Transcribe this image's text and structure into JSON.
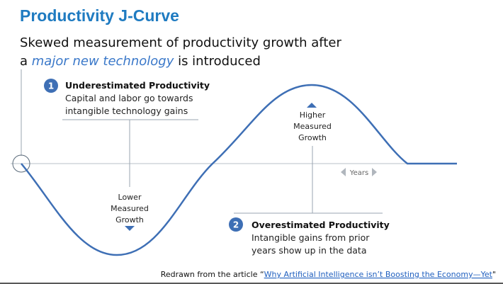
{
  "header": {
    "title": "Productivity J-Curve",
    "subtitle_line1": "Skewed measurement of productivity growth after",
    "subtitle_line2": [
      "a ",
      "major new technology",
      " is introduced"
    ]
  },
  "callouts": [
    {
      "number": "1",
      "heading": "Underestimated Productivity",
      "lines": [
        "Capital and labor go towards",
        "intangible technology gains"
      ]
    },
    {
      "number": "2",
      "heading": "Overestimated Productivity",
      "lines": [
        "Intangible gains from prior",
        "years show up in the data"
      ]
    }
  ],
  "lower_label": [
    "Lower",
    "Measured",
    "Growth"
  ],
  "higher_label": [
    "Higher",
    "Measured",
    "Growth"
  ],
  "years_label": "Years",
  "footer": [
    "Redrawn from the article “",
    "Why Artificial Intelligence isn’t Boosting the Economy—Yet",
    "\""
  ]
}
